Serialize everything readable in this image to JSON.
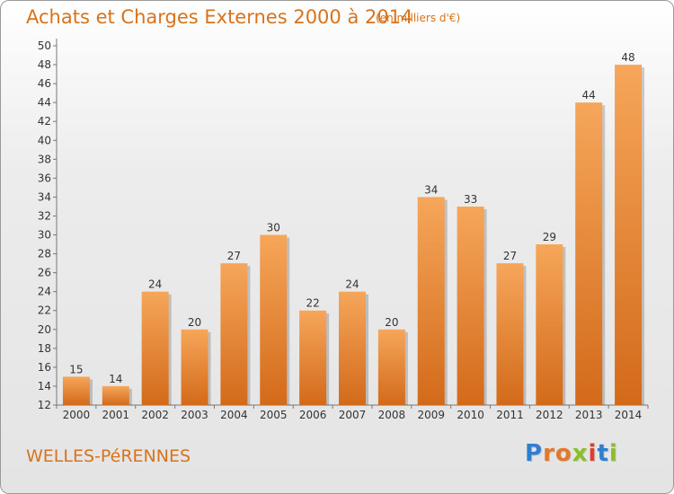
{
  "header": {
    "title": "Achats et Charges Externes 2000 à 2014",
    "subtitle": "(en milliers d'€)"
  },
  "footer": {
    "commune": "WELLES-PéRENNES",
    "brand_letters": [
      "P",
      "r",
      "o",
      "x",
      "i",
      "t",
      "i"
    ]
  },
  "colors": {
    "bar_top": "#f6a65a",
    "bar_bottom": "#d36a1a",
    "accent_text": "#d8731b",
    "brand": [
      "#2f7fd0",
      "#e2782b",
      "#e2782b",
      "#8bbf2a",
      "#e23c2f",
      "#2f7fd0",
      "#8bbf2a"
    ]
  },
  "chart_data": {
    "type": "bar",
    "title": "Achats et Charges Externes 2000 à 2014",
    "subtitle": "(en milliers d'€)",
    "xlabel": "",
    "ylabel": "",
    "categories": [
      "2000",
      "2001",
      "2002",
      "2003",
      "2004",
      "2005",
      "2006",
      "2007",
      "2008",
      "2009",
      "2010",
      "2011",
      "2012",
      "2013",
      "2014"
    ],
    "values": [
      15,
      14,
      24,
      20,
      27,
      30,
      22,
      24,
      20,
      34,
      33,
      27,
      29,
      44,
      48
    ],
    "ylim": [
      12,
      50
    ],
    "yticks": [
      12,
      14,
      16,
      18,
      20,
      22,
      24,
      26,
      28,
      30,
      32,
      34,
      36,
      38,
      40,
      42,
      44,
      46,
      48,
      50
    ],
    "grid": false
  }
}
